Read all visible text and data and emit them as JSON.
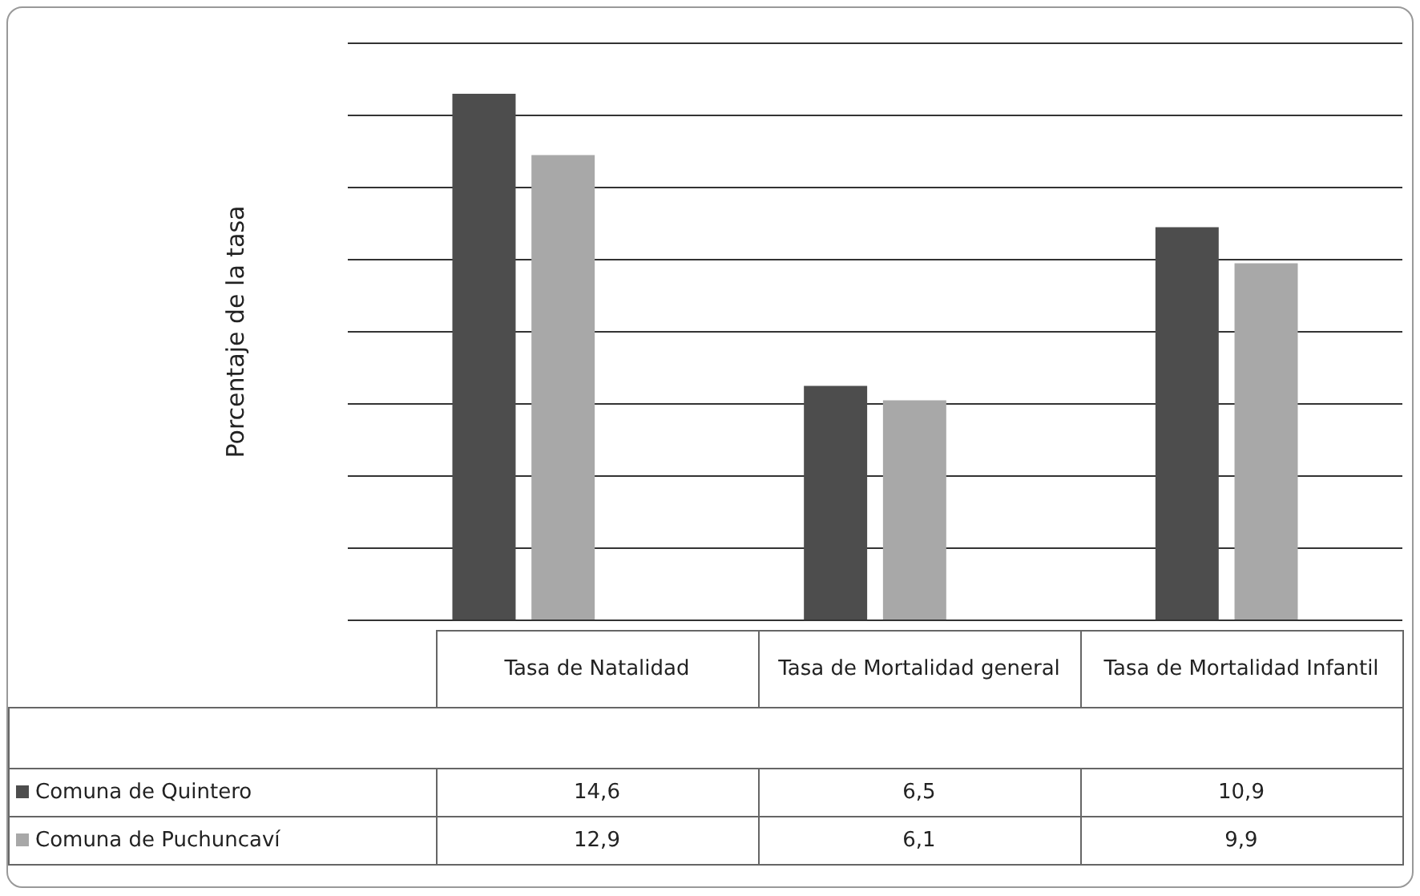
{
  "chart_data": {
    "type": "bar",
    "ylabel": "Porcentaje de la tasa",
    "categories": [
      "Tasa de Natalidad",
      "Tasa de Mortalidad general",
      "Tasa de Mortalidad Infantil"
    ],
    "series": [
      {
        "name": "Comuna de Quintero",
        "color": "#4d4d4d",
        "values": [
          14.6,
          6.5,
          10.9
        ],
        "value_labels": [
          "14,6",
          "6,5",
          "10,9"
        ]
      },
      {
        "name": "Comuna de Puchuncaví",
        "color": "#a8a8a8",
        "values": [
          12.9,
          6.1,
          9.9
        ],
        "value_labels": [
          "12,9",
          "6,1",
          "9,9"
        ]
      }
    ],
    "tick_labels": false,
    "grid": "y",
    "legend": "bottom"
  }
}
